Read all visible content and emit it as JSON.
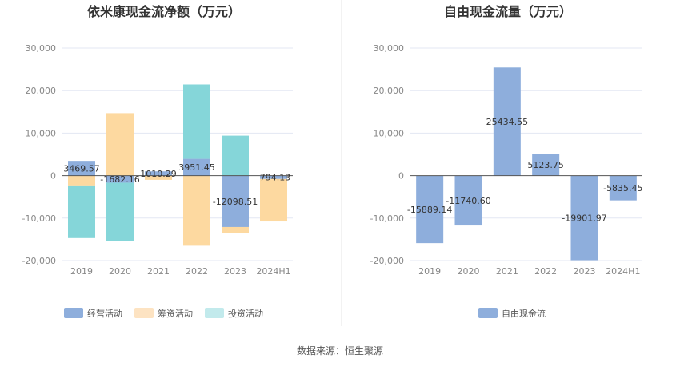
{
  "colors": {
    "operating": "#8eaedc",
    "financing": "#fdd9a0",
    "investing": "#85d6d9",
    "fcf": "#8eaedc",
    "legend_financing": "#fde3c2",
    "legend_investing": "#c2eaec",
    "grid": "#e3e7f3",
    "axis": "#555555",
    "divider": "#e5e5e5"
  },
  "source": "数据来源：恒生聚源",
  "chart_data": [
    {
      "type": "bar",
      "stacked": true,
      "title": "依米康现金流净额（万元）",
      "categories": [
        "2019",
        "2020",
        "2021",
        "2022",
        "2023",
        "2024H1"
      ],
      "ylim": [
        -20000,
        30000
      ],
      "yticks": [
        30000,
        20000,
        10000,
        0,
        -10000,
        -20000
      ],
      "ytick_labels": [
        "30,000",
        "20,000",
        "10,000",
        "0",
        "-10,000",
        "-20,000"
      ],
      "series": [
        {
          "name": "经营活动",
          "color": "#8eaedc",
          "legend_color": "#8eaedc",
          "values": [
            3469.57,
            -1682.16,
            1010.29,
            3951.45,
            -12098.51,
            -794.13
          ],
          "labels": [
            "3469.57",
            "-1682.16",
            "1010.29",
            "3951.45",
            "-12098.51",
            "-794.13"
          ]
        },
        {
          "name": "筹资活动",
          "color": "#fdd9a0",
          "legend_color": "#fde3c2",
          "values": [
            -2500,
            14700,
            -1000,
            -16500,
            -1500,
            -10000
          ]
        },
        {
          "name": "投资活动",
          "color": "#85d6d9",
          "legend_color": "#c2eaec",
          "values": [
            -12200,
            -13700,
            0,
            17500,
            9400,
            0
          ]
        }
      ]
    },
    {
      "type": "bar",
      "title": "自由现金流量（万元）",
      "categories": [
        "2019",
        "2020",
        "2021",
        "2022",
        "2023",
        "2024H1"
      ],
      "ylim": [
        -20000,
        30000
      ],
      "yticks": [
        30000,
        20000,
        10000,
        0,
        -10000,
        -20000
      ],
      "ytick_labels": [
        "30,000",
        "20,000",
        "10,000",
        "0",
        "-10,000",
        "-20,000"
      ],
      "series": [
        {
          "name": "自由现金流",
          "color": "#8eaedc",
          "legend_color": "#8eaedc",
          "values": [
            -15889.14,
            -11740.6,
            25434.55,
            5123.75,
            -19901.97,
            -5835.45
          ],
          "labels": [
            "-15889.14",
            "-11740.60",
            "25434.55",
            "5123.75",
            "-19901.97",
            "-5835.45"
          ]
        }
      ]
    }
  ]
}
